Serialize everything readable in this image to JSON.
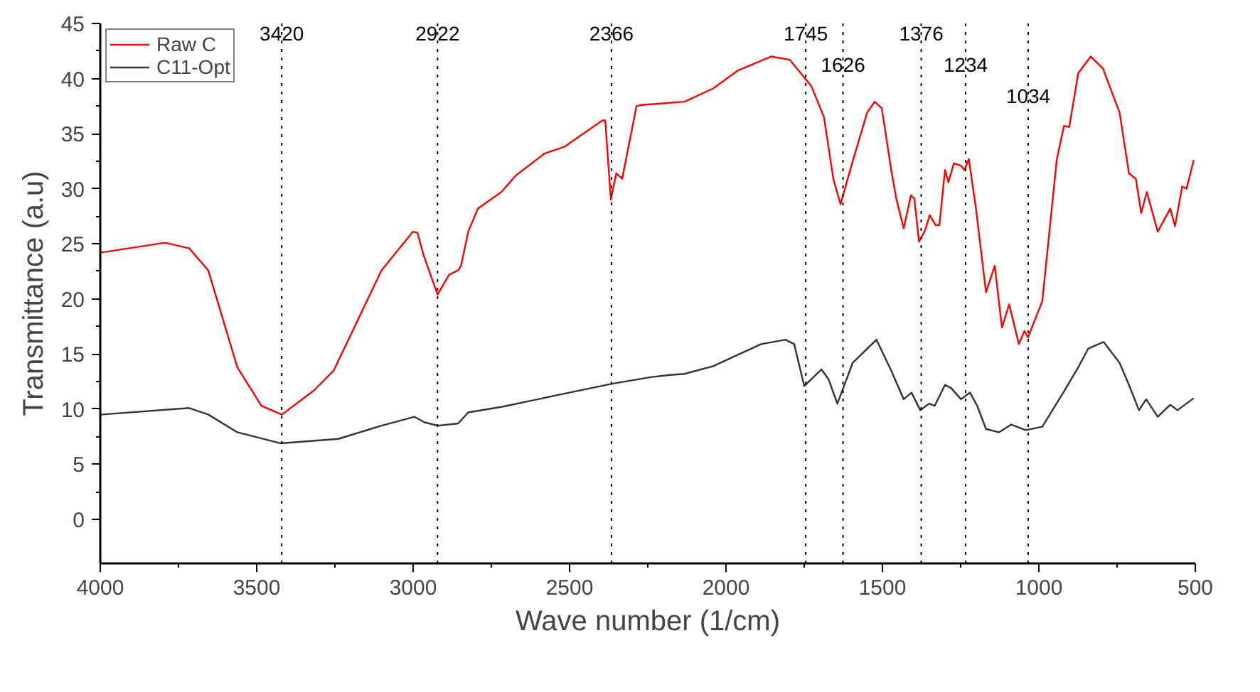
{
  "chart_data": {
    "type": "line",
    "xlabel": "Wave number (1/cm)",
    "ylabel": "Transmittance (a.u)",
    "xlim": [
      4000,
      500
    ],
    "xticks": [
      4000,
      3500,
      3000,
      2500,
      2000,
      1500,
      1000,
      500
    ],
    "ylim": [
      -4,
      45
    ],
    "yticks": [
      0,
      5,
      10,
      15,
      20,
      25,
      30,
      35,
      40,
      45
    ],
    "grid": false,
    "legend": "top left",
    "line_style": "solid",
    "marker": "none",
    "series": [
      {
        "name": "Raw C",
        "color": "#ff0000",
        "x": [
          4000,
          3793,
          3716,
          3655,
          3562,
          3485,
          3420,
          3317,
          3254,
          3101,
          3001,
          2986,
          2967,
          2922,
          2885,
          2856,
          2847,
          2824,
          2793,
          2718,
          2672,
          2580,
          2517,
          2487,
          2395,
          2386,
          2368,
          2351,
          2332,
          2286,
          2271,
          2225,
          2133,
          2041,
          1964,
          1856,
          1796,
          1750,
          1727,
          1687,
          1657,
          1634,
          1595,
          1549,
          1525,
          1502,
          1472,
          1455,
          1432,
          1409,
          1398,
          1383,
          1364,
          1349,
          1330,
          1318,
          1300,
          1289,
          1272,
          1249,
          1238,
          1224,
          1202,
          1169,
          1141,
          1118,
          1095,
          1064,
          1046,
          1035,
          989,
          943,
          920,
          903,
          874,
          834,
          795,
          742,
          712,
          690,
          673,
          655,
          620,
          580,
          565,
          542,
          528,
          505
        ],
        "values": [
          24.2,
          25.1,
          24.6,
          22.6,
          13.8,
          10.3,
          9.5,
          11.7,
          13.5,
          22.6,
          26.1,
          26.0,
          24.0,
          20.4,
          22.2,
          22.6,
          23.0,
          26.1,
          28.2,
          29.7,
          31.2,
          33.2,
          33.8,
          34.4,
          36.2,
          36.2,
          29.0,
          31.4,
          30.9,
          37.5,
          37.6,
          37.7,
          37.9,
          39.1,
          40.7,
          42.0,
          41.7,
          40.1,
          39.3,
          36.5,
          30.9,
          28.6,
          32.5,
          36.9,
          37.9,
          37.3,
          31.7,
          29.0,
          26.4,
          29.4,
          29.1,
          25.2,
          26.2,
          27.6,
          26.7,
          26.7,
          31.7,
          30.6,
          32.3,
          32.1,
          31.7,
          32.7,
          28.4,
          20.6,
          23.0,
          17.4,
          19.5,
          15.9,
          17.1,
          16.5,
          19.8,
          32.6,
          35.7,
          35.6,
          40.5,
          42.0,
          40.9,
          36.9,
          31.4,
          30.9,
          27.8,
          29.7,
          26.1,
          28.2,
          26.6,
          30.2,
          30.0,
          32.6
        ]
      },
      {
        "name": "C11-Opt",
        "color": "#333333",
        "x": [
          4000,
          3716,
          3654,
          3562,
          3424,
          3239,
          3101,
          2996,
          2963,
          2921,
          2856,
          2824,
          2718,
          2517,
          2364,
          2241,
          2179,
          2133,
          2041,
          1888,
          1810,
          1782,
          1750,
          1695,
          1672,
          1644,
          1595,
          1519,
          1472,
          1432,
          1407,
          1379,
          1351,
          1333,
          1300,
          1280,
          1249,
          1220,
          1197,
          1169,
          1128,
          1088,
          1042,
          989,
          920,
          874,
          842,
          793,
          742,
          712,
          680,
          657,
          620,
          580,
          557,
          505
        ],
        "values": [
          9.5,
          10.1,
          9.5,
          7.9,
          6.9,
          7.3,
          8.5,
          9.3,
          8.8,
          8.5,
          8.7,
          9.7,
          10.2,
          11.4,
          12.3,
          12.9,
          13.1,
          13.2,
          13.9,
          15.9,
          16.3,
          15.9,
          12.1,
          13.6,
          12.7,
          10.5,
          14.2,
          16.3,
          13.5,
          10.9,
          11.5,
          9.9,
          10.5,
          10.3,
          12.2,
          11.9,
          10.9,
          11.5,
          10.3,
          8.2,
          7.9,
          8.6,
          8.1,
          8.4,
          11.6,
          13.8,
          15.5,
          16.1,
          14.2,
          12.2,
          9.9,
          10.9,
          9.3,
          10.4,
          9.9,
          11.0
        ]
      }
    ],
    "ref_lines": [
      {
        "axis": "x",
        "value": 3420,
        "label": "3420",
        "line_style": "dotted",
        "color": "#000000"
      },
      {
        "axis": "x",
        "value": 2922,
        "label": "2922",
        "line_style": "dotted",
        "color": "#000000"
      },
      {
        "axis": "x",
        "value": 2366,
        "label": "2366",
        "line_style": "dotted",
        "color": "#000000"
      },
      {
        "axis": "x",
        "value": 1745,
        "label": "1745",
        "line_style": "dotted",
        "color": "#000000"
      },
      {
        "axis": "x",
        "value": 1626,
        "label": "1626",
        "line_style": "dotted",
        "color": "#000000"
      },
      {
        "axis": "x",
        "value": 1376,
        "label": "1376",
        "line_style": "dotted",
        "color": "#000000"
      },
      {
        "axis": "x",
        "value": 1234,
        "label": "1234",
        "line_style": "dotted",
        "color": "#000000"
      },
      {
        "axis": "x",
        "value": 1034,
        "label": "1034",
        "line_style": "dotted",
        "color": "#000000"
      }
    ]
  }
}
